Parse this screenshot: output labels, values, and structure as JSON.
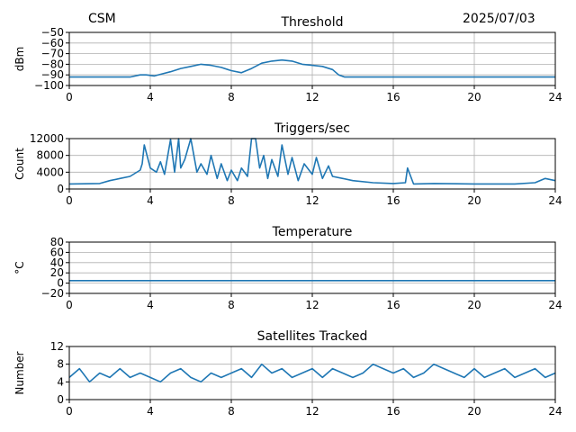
{
  "header": {
    "left": "CSM",
    "center": "Threshold",
    "right": "2025/07/03"
  },
  "colors": {
    "line": "#1f77b4",
    "grid": "#b0b0b0",
    "axis": "#000000"
  },
  "chart_data": [
    {
      "type": "line",
      "title": "Threshold",
      "ylabel": "dBm",
      "xlim": [
        0,
        24
      ],
      "ylim": [
        -100,
        -50
      ],
      "xticks": [
        0,
        4,
        8,
        12,
        16,
        20,
        24
      ],
      "yticks": [
        -100,
        -90,
        -80,
        -70,
        -60,
        -50
      ],
      "ytick_labels": [
        "−100",
        "−90",
        "−80",
        "−70",
        "−60",
        "−50"
      ],
      "grid": true,
      "series": [
        {
          "x": [
            0,
            1,
            2,
            3,
            3.5,
            3.8,
            4.2,
            4.6,
            5,
            5.5,
            6,
            6.5,
            7,
            7.5,
            8,
            8.5,
            9,
            9.5,
            10,
            10.5,
            11,
            11.5,
            12,
            12.5,
            13,
            13.3,
            13.6,
            14,
            16,
            18,
            20,
            22,
            24
          ],
          "y": [
            -92,
            -92,
            -92,
            -92,
            -90,
            -90,
            -91,
            -89,
            -87,
            -84,
            -82,
            -80,
            -81,
            -83,
            -86,
            -88,
            -84,
            -79,
            -77,
            -76,
            -77,
            -80,
            -81,
            -82,
            -85,
            -90,
            -92,
            -92,
            -92,
            -92,
            -92,
            -92,
            -92
          ]
        }
      ]
    },
    {
      "type": "line",
      "title": "Triggers/sec",
      "ylabel": "Count",
      "xlim": [
        0,
        24
      ],
      "ylim": [
        0,
        12000
      ],
      "xticks": [
        0,
        4,
        8,
        12,
        16,
        20,
        24
      ],
      "yticks": [
        0,
        4000,
        8000,
        12000
      ],
      "grid": true,
      "series": [
        {
          "x": [
            0,
            1.5,
            2,
            2.5,
            3,
            3.5,
            3.6,
            3.7,
            4,
            4.3,
            4.5,
            4.7,
            5,
            5.2,
            5.4,
            5.5,
            5.7,
            6,
            6.3,
            6.5,
            6.8,
            7,
            7.3,
            7.5,
            7.8,
            8,
            8.3,
            8.5,
            8.8,
            9,
            9.2,
            9.4,
            9.6,
            9.8,
            10,
            10.3,
            10.5,
            10.8,
            11,
            11.3,
            11.6,
            12,
            12.2,
            12.5,
            12.8,
            13,
            13.5,
            14,
            15,
            16,
            16.6,
            16.7,
            17,
            18,
            20,
            22,
            23,
            23.5,
            24
          ],
          "y": [
            1200,
            1300,
            2000,
            2500,
            3000,
            4500,
            6000,
            10500,
            5000,
            4000,
            6500,
            3500,
            11800,
            4000,
            12000,
            5000,
            7000,
            12000,
            4000,
            6000,
            3500,
            8000,
            2500,
            6000,
            2000,
            4500,
            2000,
            5000,
            3000,
            12000,
            12000,
            5000,
            8000,
            2500,
            7000,
            3000,
            10500,
            3500,
            7500,
            2000,
            6000,
            3500,
            7500,
            2500,
            5500,
            3000,
            2500,
            2000,
            1500,
            1300,
            1500,
            5000,
            1200,
            1300,
            1200,
            1200,
            1500,
            2500,
            2000
          ]
        }
      ]
    },
    {
      "type": "line",
      "title": "Temperature",
      "ylabel": "°C",
      "xlim": [
        0,
        24
      ],
      "ylim": [
        -20,
        80
      ],
      "xticks": [
        0,
        4,
        8,
        12,
        16,
        20,
        24
      ],
      "yticks": [
        -20,
        0,
        20,
        40,
        60,
        80
      ],
      "ytick_labels": [
        "−20",
        "0",
        "20",
        "40",
        "60",
        "80"
      ],
      "grid": true,
      "series": [
        {
          "x": [
            0,
            24
          ],
          "y": [
            5,
            5
          ]
        }
      ]
    },
    {
      "type": "line",
      "title": "Satellites Tracked",
      "ylabel": "Number",
      "xlim": [
        0,
        24
      ],
      "ylim": [
        0,
        12
      ],
      "xticks": [
        0,
        4,
        8,
        12,
        16,
        20,
        24
      ],
      "yticks": [
        0,
        4,
        8,
        12
      ],
      "grid": true,
      "series": [
        {
          "x": [
            0,
            0.5,
            1,
            1.5,
            2,
            2.5,
            3,
            3.5,
            4,
            4.5,
            5,
            5.5,
            6,
            6.5,
            7,
            7.5,
            8,
            8.5,
            9,
            9.5,
            10,
            10.5,
            11,
            11.5,
            12,
            12.5,
            13,
            13.5,
            14,
            14.5,
            15,
            15.5,
            16,
            16.5,
            17,
            17.5,
            18,
            18.5,
            19,
            19.5,
            20,
            20.5,
            21,
            21.5,
            22,
            22.5,
            23,
            23.5,
            24
          ],
          "y": [
            5,
            7,
            4,
            6,
            5,
            7,
            5,
            6,
            5,
            4,
            6,
            7,
            5,
            4,
            6,
            5,
            6,
            7,
            5,
            8,
            6,
            7,
            5,
            6,
            7,
            5,
            7,
            6,
            5,
            6,
            8,
            7,
            6,
            7,
            5,
            6,
            8,
            7,
            6,
            5,
            7,
            5,
            6,
            7,
            5,
            6,
            7,
            5,
            6
          ]
        }
      ]
    }
  ]
}
